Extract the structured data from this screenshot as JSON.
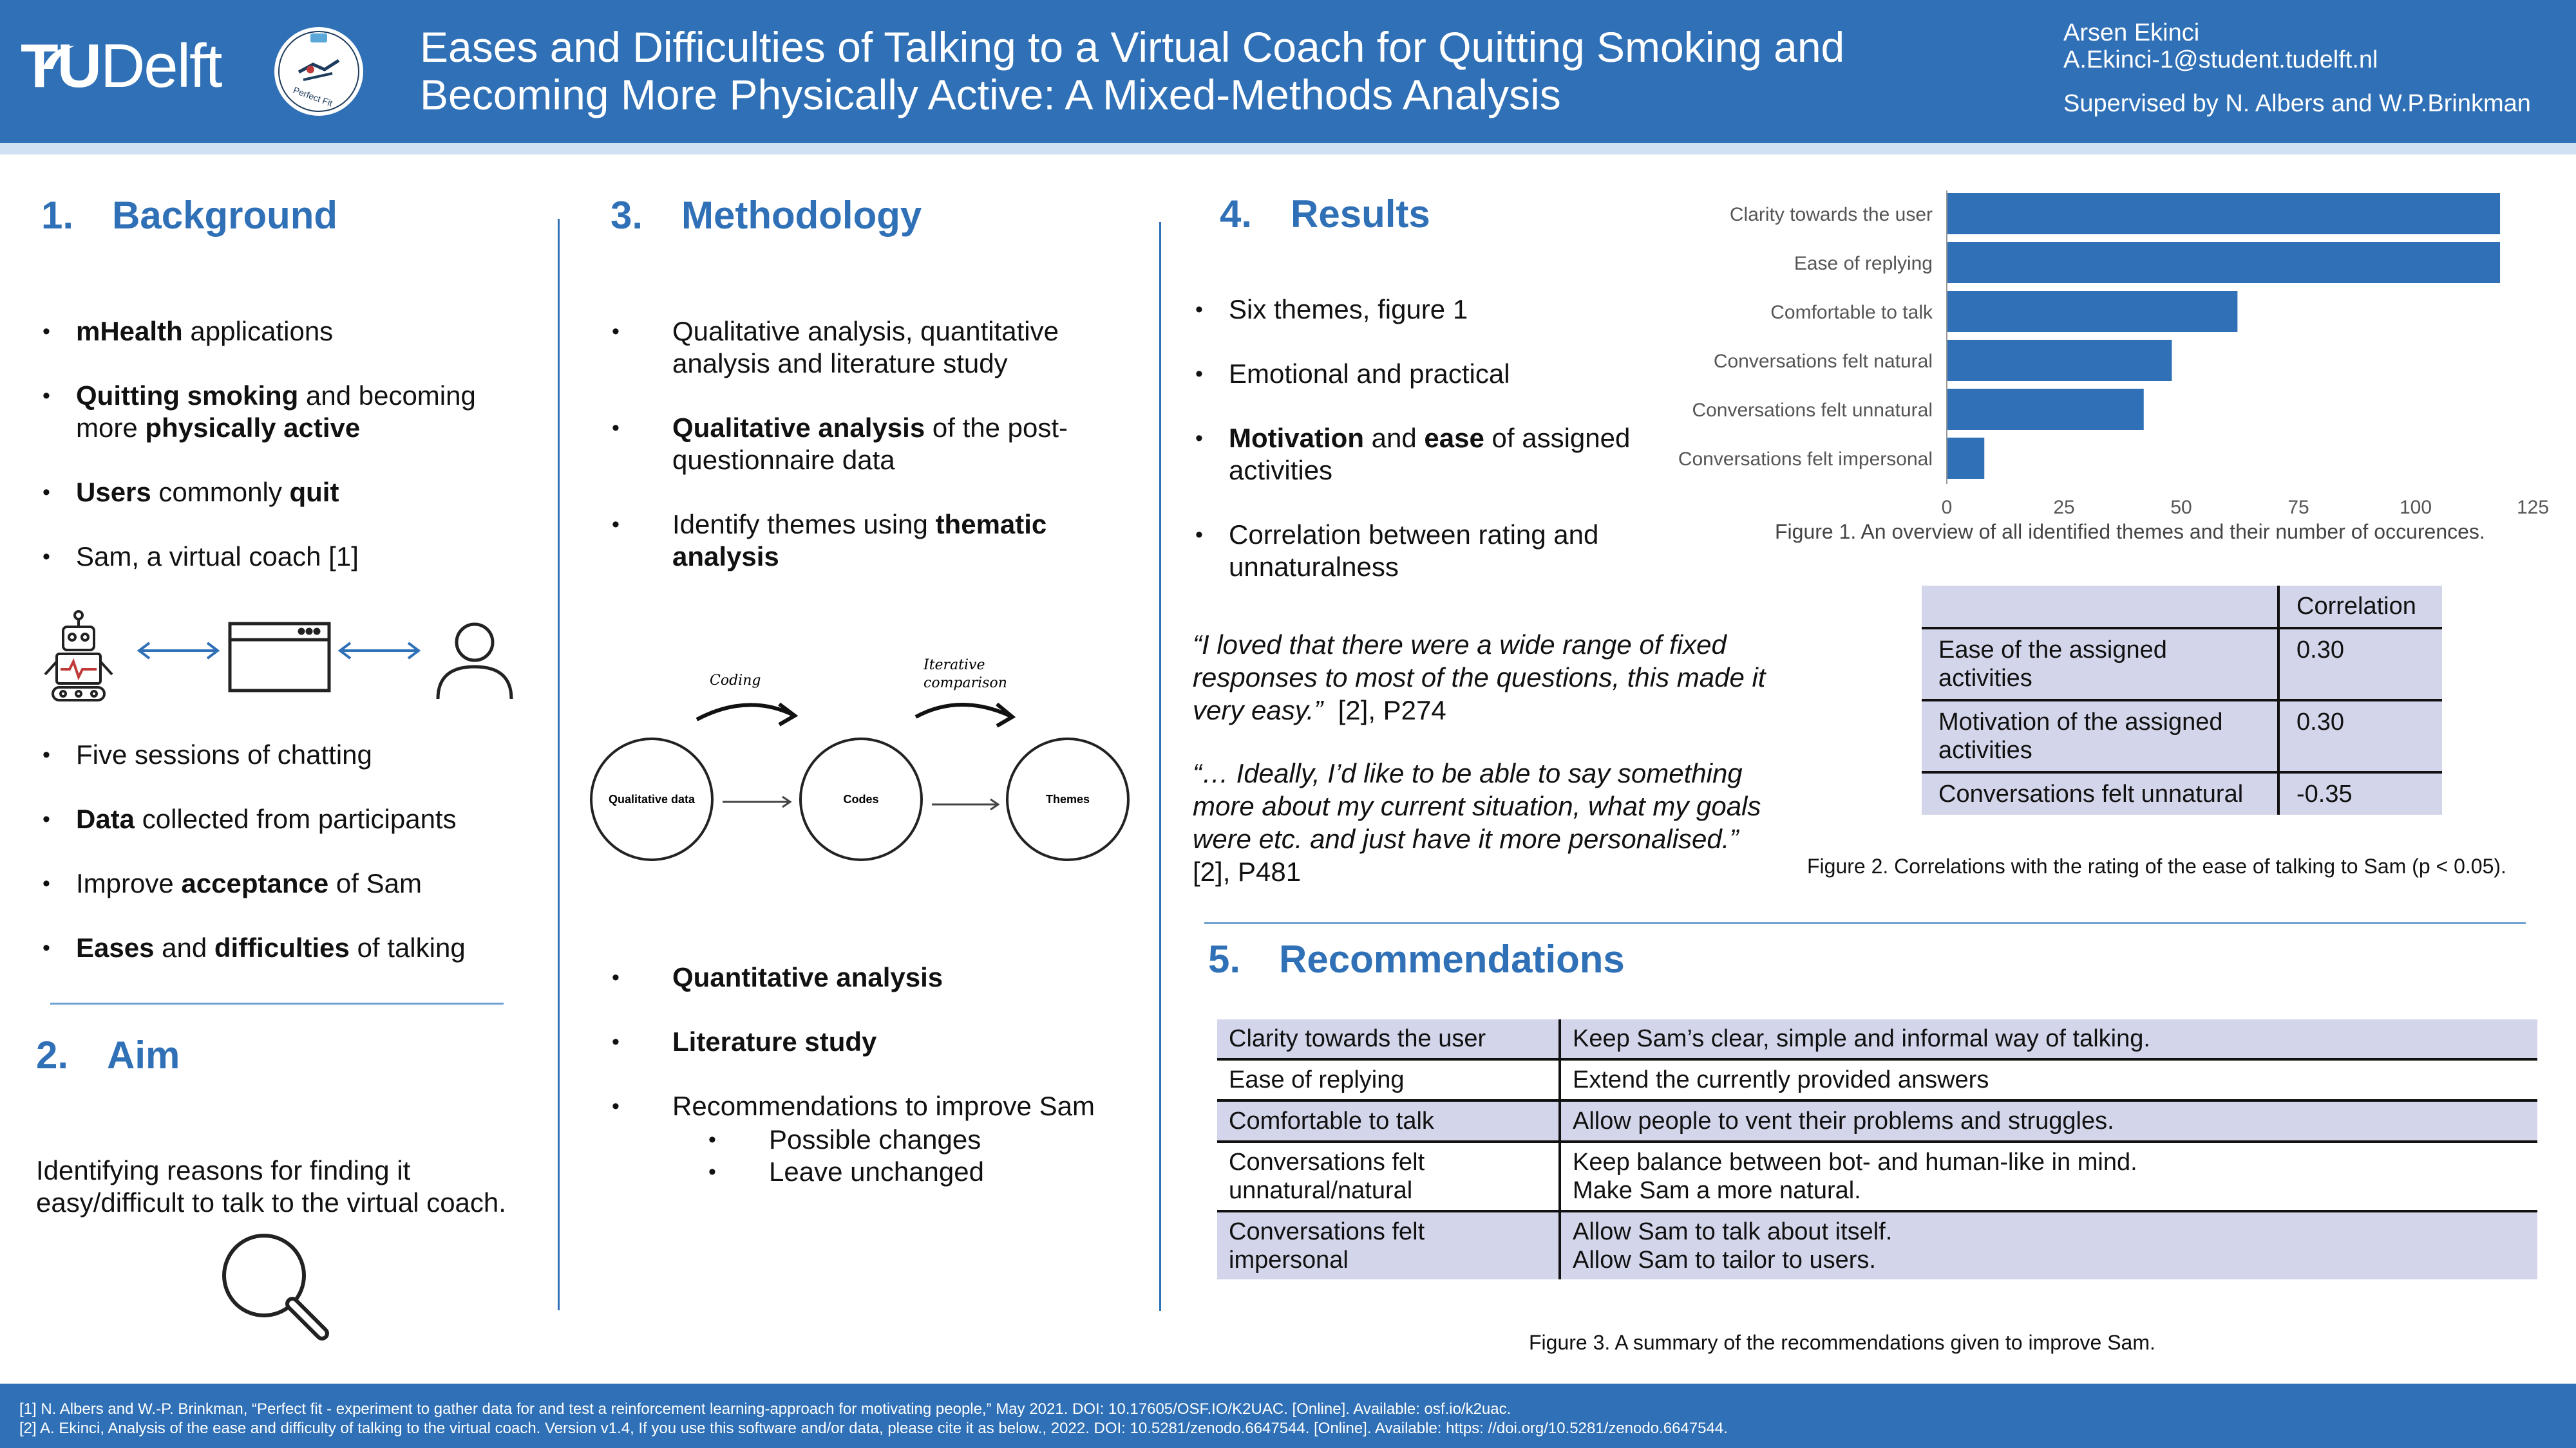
{
  "header": {
    "logo_tu": "TU",
    "logo_delft": "Delft",
    "emblem_text": "Perfect Fit",
    "title_line1": "Eases and Difficulties of Talking to a Virtual Coach for Quitting Smoking and",
    "title_line2": "Becoming More Physically Active: A Mixed-Methods Analysis",
    "author": "Arsen Ekinci",
    "email": "A.Ekinci-1@student.tudelft.nl",
    "supervisors": "Supervised by N. Albers and W.P.Brinkman"
  },
  "background": {
    "num": "1.",
    "heading": "Background",
    "items": [
      [
        {
          "t": "mHealth",
          "b": true
        },
        {
          "t": " applications"
        }
      ],
      [
        {
          "t": "Quitting smoking",
          "b": true
        },
        {
          "t": " and becoming more "
        },
        {
          "t": "physically active",
          "b": true
        }
      ],
      [
        {
          "t": "Users",
          "b": true
        },
        {
          "t": " commonly "
        },
        {
          "t": "quit",
          "b": true
        }
      ],
      [
        {
          "t": "Sam, a virtual coach [1]"
        }
      ]
    ],
    "items2": [
      [
        {
          "t": "Five sessions of chatting"
        }
      ],
      [
        {
          "t": "Data",
          "b": true
        },
        {
          "t": " collected from participants"
        }
      ],
      [
        {
          "t": "Improve "
        },
        {
          "t": "acceptance",
          "b": true
        },
        {
          "t": " of Sam"
        }
      ],
      [
        {
          "t": "Eases",
          "b": true
        },
        {
          "t": " and "
        },
        {
          "t": "difficulties",
          "b": true
        },
        {
          "t": " of talking"
        }
      ]
    ]
  },
  "aim": {
    "num": "2.",
    "heading": "Aim",
    "text_line1": "Identifying reasons for finding it",
    "text_line2": "easy/difficult to talk to the virtual coach."
  },
  "methodology": {
    "num": "3.",
    "heading": "Methodology",
    "items": [
      [
        {
          "t": "Qualitative analysis, quantitative analysis and literature study"
        }
      ],
      [
        {
          "t": "Qualitative analysis",
          "b": true
        },
        {
          "t": " of the post-questionnaire data"
        }
      ],
      [
        {
          "t": "Identify themes using "
        },
        {
          "t": "thematic analysis",
          "b": true
        }
      ]
    ],
    "diagram": {
      "node1": "Qualitative data",
      "node2": "Codes",
      "node3": "Themes",
      "label1": "Coding",
      "label2a": "Iterative",
      "label2b": "comparison"
    },
    "items2": [
      [
        {
          "t": "Quantitative analysis",
          "b": true
        }
      ],
      [
        {
          "t": "Literature study",
          "b": true
        }
      ]
    ],
    "last_item": "Recommendations to improve Sam",
    "subitems": [
      "Possible changes",
      "Leave unchanged"
    ]
  },
  "results": {
    "num": "4.",
    "heading": "Results",
    "items": [
      [
        {
          "t": "Six themes, figure 1"
        }
      ],
      [
        {
          "t": "Emotional and practical"
        }
      ],
      [
        {
          "t": "Motivation",
          "b": true
        },
        {
          "t": " and "
        },
        {
          "t": "ease",
          "b": true
        },
        {
          "t": " of assigned activities"
        }
      ],
      [
        {
          "t": "Correlation between rating and unnaturalness"
        }
      ]
    ],
    "quote1": "“I loved that there were a wide range of fixed responses to most of the questions, this made it very easy.”",
    "quote1_ref": "[2], P274",
    "quote2": "“… Ideally, I’d like to be able to say something more about my current situation, what my goals were etc. and just have it more personalised.”",
    "quote2_ref": "[2], P481",
    "fig1_caption": "Figure 1. An overview of all identified themes and their number of occurences.",
    "corr_header": [
      "",
      "Correlation"
    ],
    "corr_rows": [
      [
        "Ease of the assigned activities",
        "0.30"
      ],
      [
        "Motivation of the assigned activities",
        "0.30"
      ],
      [
        "Conversations felt unnatural",
        "-0.35"
      ]
    ],
    "fig2_caption": "Figure 2. Correlations with the rating of the ease of talking to Sam (p < 0.05)."
  },
  "chart_data": {
    "type": "bar",
    "orientation": "horizontal",
    "categories": [
      "Clarity towards the user",
      "Ease of replying",
      "Comfortable to talk",
      "Conversations felt natural",
      "Conversations felt unnatural",
      "Conversations felt impersonal"
    ],
    "values": [
      118,
      118,
      62,
      48,
      42,
      8
    ],
    "xlim": [
      0,
      125
    ],
    "xticks": [
      "0",
      "25",
      "50",
      "75",
      "100",
      "125"
    ],
    "bar_color": "#2f70b6",
    "grid": false
  },
  "recommendations": {
    "num": "5.",
    "heading": "Recommendations",
    "rows": [
      [
        "Clarity towards the user",
        "Keep Sam’s clear, simple and informal way of talking."
      ],
      [
        "Ease of replying",
        "Extend the currently provided answers"
      ],
      [
        "Comfortable to talk",
        "Allow people to vent their problems and struggles."
      ],
      [
        "Conversations felt unnatural/natural",
        "Keep balance between bot- and human-like in mind.\nMake Sam a more natural."
      ],
      [
        "Conversations felt impersonal",
        "Allow Sam to talk about itself.\nAllow Sam to tailor to users."
      ]
    ],
    "caption": "Figure 3. A summary of the recommendations given to improve Sam."
  },
  "footer": {
    "ref1": "[1] N. Albers and W.-P. Brinkman, “Perfect fit - experiment to gather data for and test a reinforcement learning-approach for motivating people,” May 2021. DOI: 10.17605/OSF.IO/K2UAC. [Online]. Available: osf.io/k2uac.",
    "ref2": "[2] A. Ekinci, Analysis of the ease and difficulty of talking to the virtual coach. Version v1.4, If you use this software and/or data, please cite it as below., 2022. DOI: 10.5281/zenodo.6647544. [Online]. Available: https: //doi.org/10.5281/zenodo.6647544."
  },
  "colors": {
    "header": "#2f70b6",
    "accent": "#2f70b6",
    "table_shade": "#d3d6ea"
  }
}
